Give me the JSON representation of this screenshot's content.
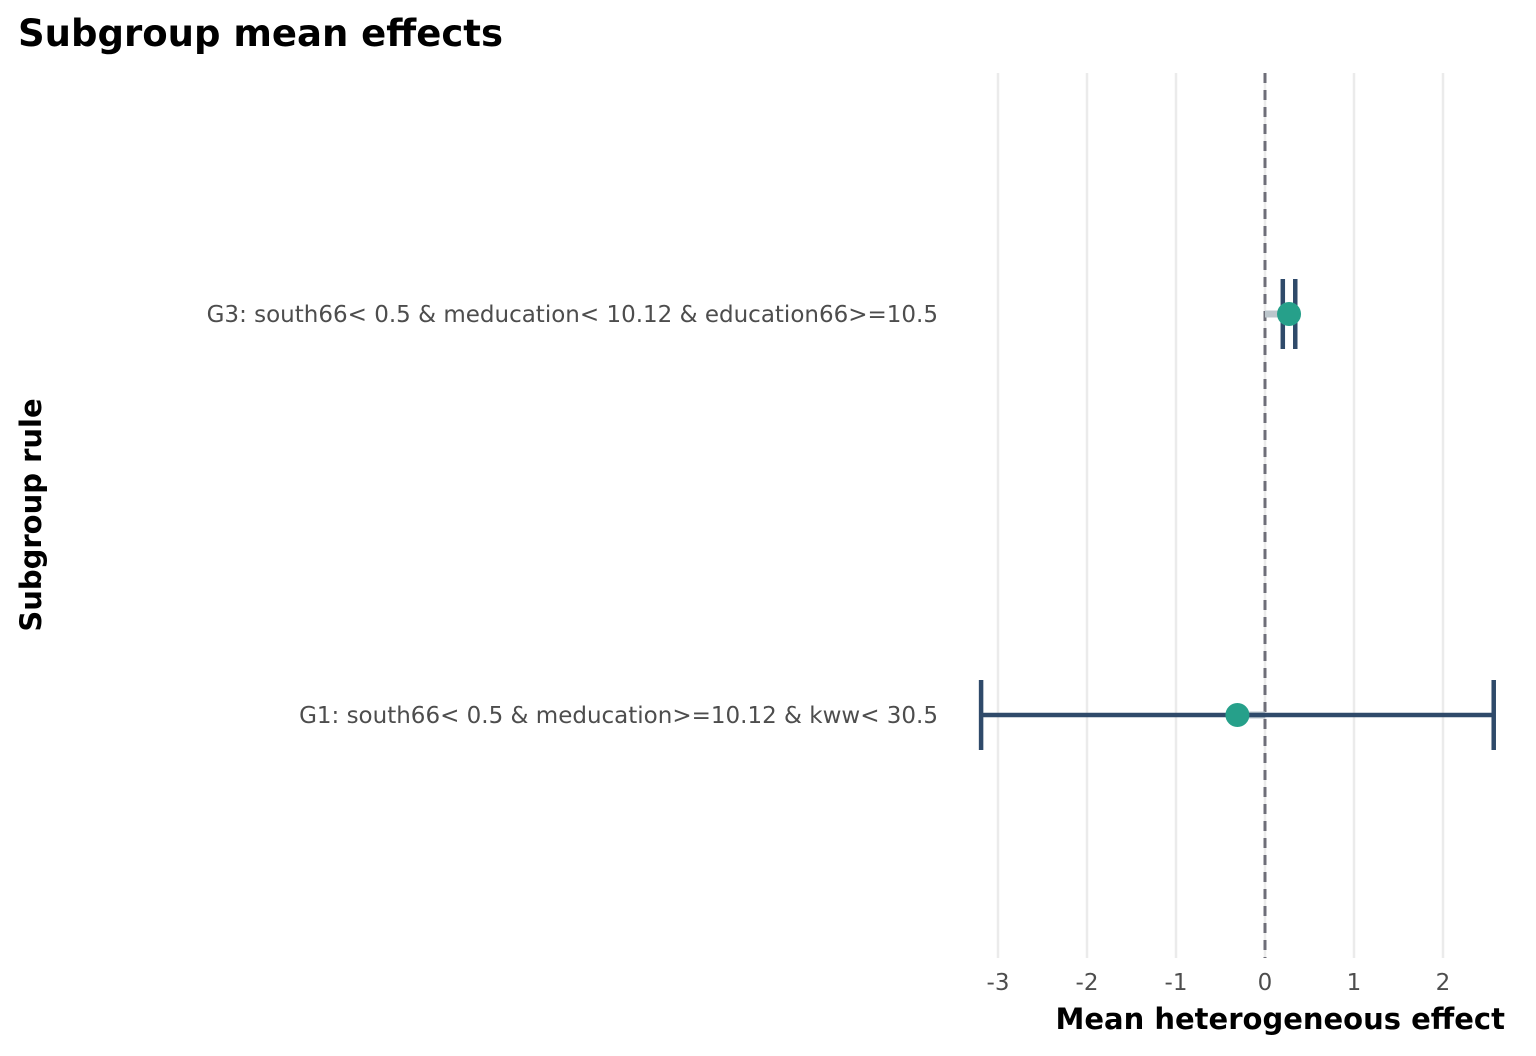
{
  "chart_data": {
    "type": "errorbar",
    "title": "Subgroup mean effects",
    "xlabel": "Mean heterogeneous effect",
    "ylabel": "Subgroup rule",
    "xlim": [
      -3.3,
      2.75
    ],
    "xticks": [
      -3,
      -2,
      -1,
      0,
      1,
      2
    ],
    "xtick_labels": [
      "-3",
      "-2",
      "-1",
      "0",
      "1",
      "2"
    ],
    "reference_line": 0,
    "grid": "vertical major",
    "categories": [
      "G3: south66< 0.5 & meducation< 10.12 & education66>=10.5",
      "G1: south66< 0.5 & meducation>=10.12 & kww< 30.5"
    ],
    "estimates": [
      0.27,
      -0.31
    ],
    "lower": [
      0.2,
      -3.19
    ],
    "upper": [
      0.34,
      2.57
    ],
    "colors": {
      "point": "#26a08a",
      "errorbar": "#2f4a6a",
      "stem": "#bcc6cc",
      "refline": "#6e6e78",
      "grid": "#ebebeb"
    }
  }
}
